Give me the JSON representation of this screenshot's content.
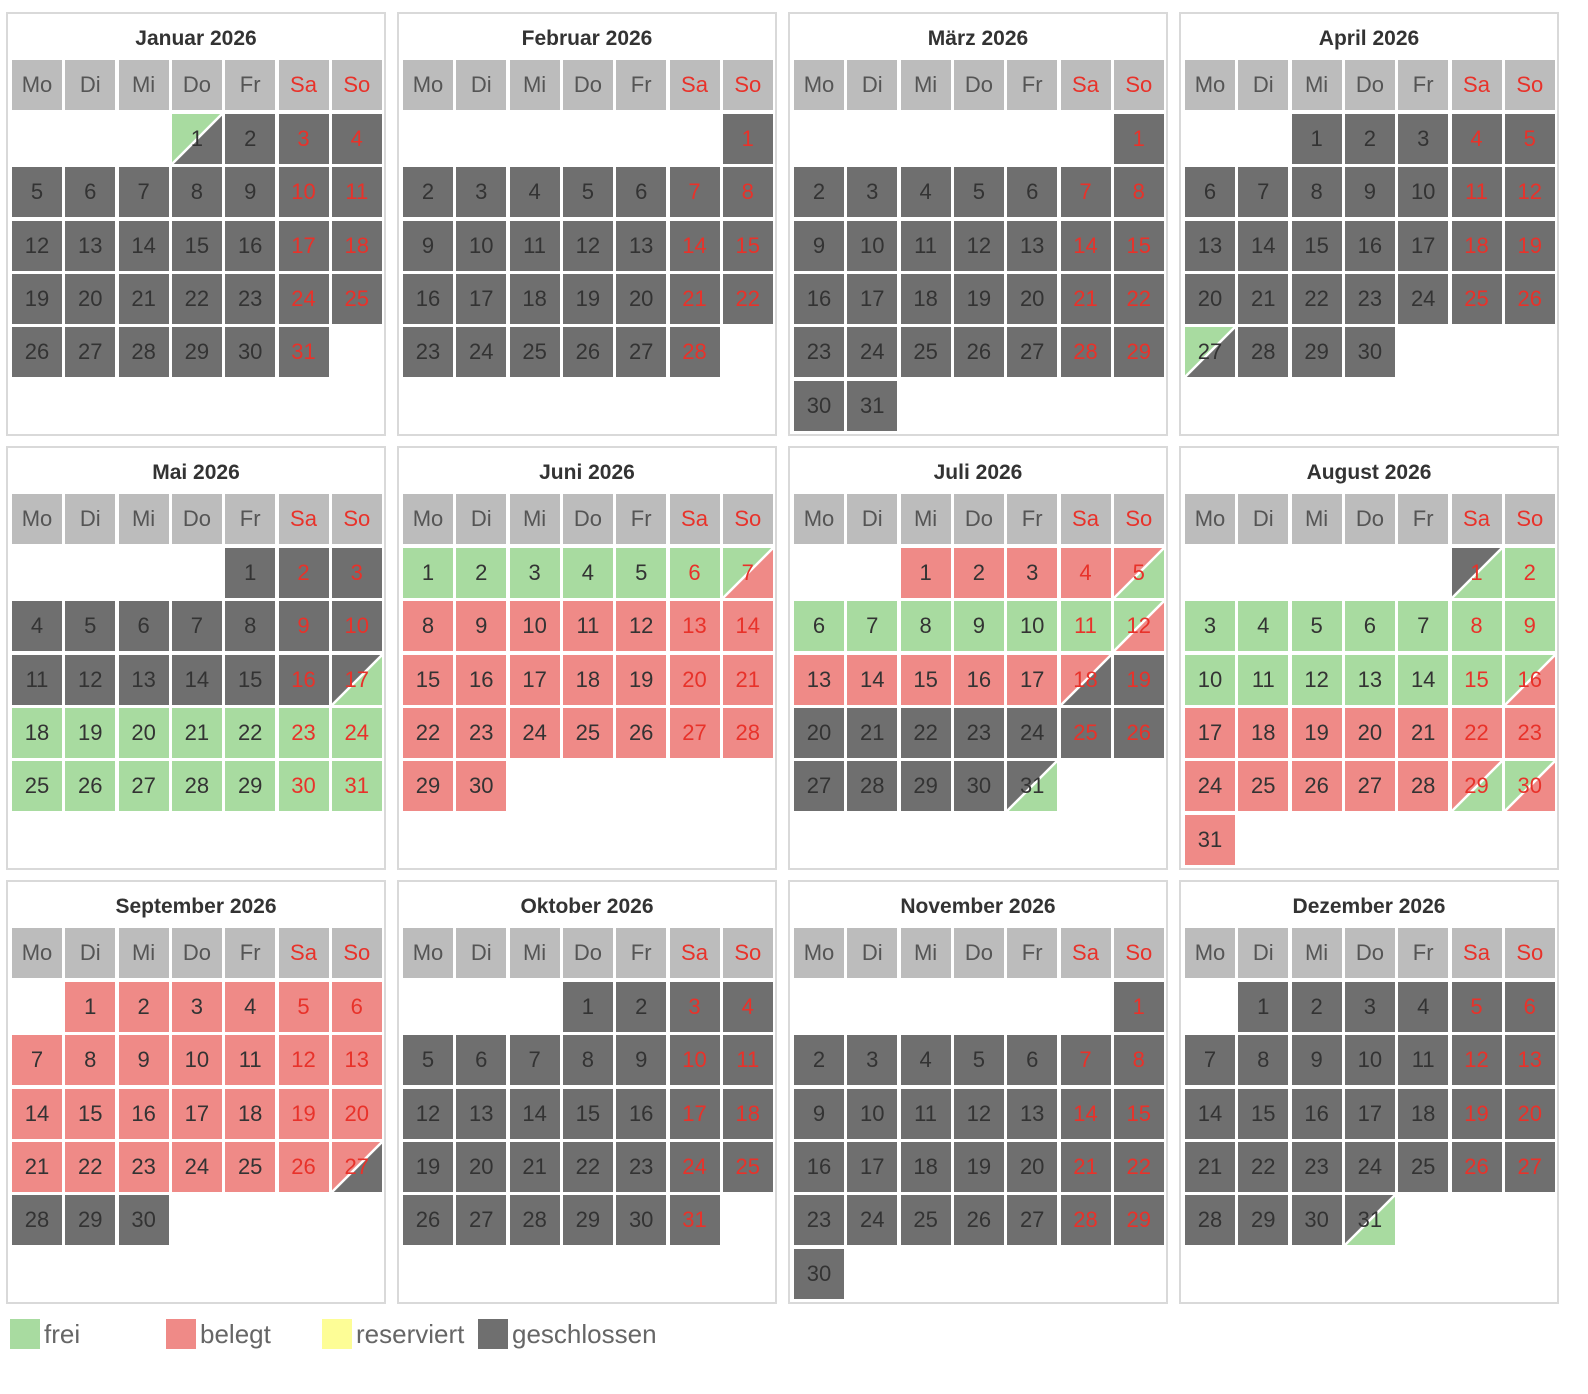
{
  "weekdays": [
    "Mo",
    "Di",
    "Mi",
    "Do",
    "Fr",
    "Sa",
    "So"
  ],
  "colors": {
    "frei": "#a8dba0",
    "belegt": "#ef8a87",
    "reserviert": "#fdfd96",
    "geschlossen": "#6f6f6f",
    "weekend_text": "#e8322a",
    "header_bg": "#bcbcbc"
  },
  "legend": [
    {
      "status": "frei",
      "label": "frei"
    },
    {
      "status": "belegt",
      "label": "belegt"
    },
    {
      "status": "reserviert",
      "label": "reserviert"
    },
    {
      "status": "geschlossen",
      "label": "geschlossen"
    }
  ],
  "months": [
    {
      "title": "Januar 2026",
      "start_weekday": 3,
      "days": 31,
      "default": "geschlossen",
      "split_days": [
        {
          "day": 1,
          "first": "frei",
          "second": "geschlossen"
        }
      ]
    },
    {
      "title": "Februar 2026",
      "start_weekday": 6,
      "days": 28,
      "default": "geschlossen"
    },
    {
      "title": "März 2026",
      "start_weekday": 6,
      "days": 31,
      "default": "geschlossen"
    },
    {
      "title": "April 2026",
      "start_weekday": 2,
      "days": 30,
      "default": "geschlossen",
      "split_days": [
        {
          "day": 27,
          "first": "frei",
          "second": "geschlossen"
        }
      ]
    },
    {
      "title": "Mai 2026",
      "start_weekday": 4,
      "days": 31,
      "default": "geschlossen",
      "ranges": [
        {
          "from": 18,
          "to": 31,
          "status": "frei"
        }
      ],
      "split_days": [
        {
          "day": 17,
          "first": "geschlossen",
          "second": "frei"
        }
      ]
    },
    {
      "title": "Juni 2026",
      "start_weekday": 0,
      "days": 30,
      "default": "belegt",
      "ranges": [
        {
          "from": 1,
          "to": 6,
          "status": "frei"
        }
      ],
      "split_days": [
        {
          "day": 7,
          "first": "frei",
          "second": "belegt"
        }
      ]
    },
    {
      "title": "Juli 2026",
      "start_weekday": 2,
      "days": 31,
      "default": "geschlossen",
      "ranges": [
        {
          "from": 1,
          "to": 4,
          "status": "belegt"
        },
        {
          "from": 6,
          "to": 11,
          "status": "frei"
        },
        {
          "from": 13,
          "to": 17,
          "status": "belegt"
        }
      ],
      "split_days": [
        {
          "day": 5,
          "first": "belegt",
          "second": "frei"
        },
        {
          "day": 12,
          "first": "frei",
          "second": "belegt"
        },
        {
          "day": 18,
          "first": "belegt",
          "second": "geschlossen"
        },
        {
          "day": 31,
          "first": "geschlossen",
          "second": "frei"
        }
      ]
    },
    {
      "title": "August 2026",
      "start_weekday": 5,
      "days": 31,
      "default": "belegt",
      "ranges": [
        {
          "from": 2,
          "to": 15,
          "status": "frei"
        }
      ],
      "split_days": [
        {
          "day": 1,
          "first": "geschlossen",
          "second": "frei"
        },
        {
          "day": 16,
          "first": "frei",
          "second": "belegt"
        },
        {
          "day": 29,
          "first": "belegt",
          "second": "frei"
        },
        {
          "day": 30,
          "first": "frei",
          "second": "belegt"
        }
      ]
    },
    {
      "title": "September 2026",
      "start_weekday": 1,
      "days": 30,
      "default": "belegt",
      "ranges": [
        {
          "from": 28,
          "to": 30,
          "status": "geschlossen"
        }
      ],
      "split_days": [
        {
          "day": 27,
          "first": "belegt",
          "second": "geschlossen"
        }
      ]
    },
    {
      "title": "Oktober 2026",
      "start_weekday": 3,
      "days": 31,
      "default": "geschlossen"
    },
    {
      "title": "November 2026",
      "start_weekday": 6,
      "days": 30,
      "default": "geschlossen"
    },
    {
      "title": "Dezember 2026",
      "start_weekday": 1,
      "days": 31,
      "default": "geschlossen",
      "split_days": [
        {
          "day": 31,
          "first": "geschlossen",
          "second": "frei"
        }
      ]
    }
  ]
}
